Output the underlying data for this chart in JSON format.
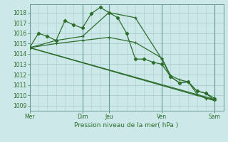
{
  "bg_color": "#cce8e8",
  "grid_color": "#aacccc",
  "line_color": "#2d6e2d",
  "xlabel": "Pression niveau de la mer( hPa )",
  "ylim": [
    1008.5,
    1018.8
  ],
  "yticks": [
    1009,
    1010,
    1011,
    1012,
    1013,
    1014,
    1015,
    1016,
    1017,
    1018
  ],
  "xtick_labels": [
    "Mer",
    "Dim",
    "Jeu",
    "Ven",
    "Sam"
  ],
  "xtick_positions": [
    0,
    6,
    9,
    15,
    21
  ],
  "vlines_major": [
    0,
    6,
    9,
    15,
    21
  ],
  "xlim": [
    0,
    22
  ],
  "series1_x": [
    0,
    1,
    2,
    3,
    4,
    5,
    6,
    7,
    8,
    9,
    10,
    11,
    12,
    13,
    14,
    15,
    16,
    17,
    18,
    19,
    20,
    21
  ],
  "series1_y": [
    1014.6,
    1016.0,
    1015.7,
    1015.3,
    1017.2,
    1016.8,
    1016.5,
    1017.9,
    1018.5,
    1018.0,
    1017.5,
    1016.0,
    1013.5,
    1013.5,
    1013.2,
    1013.0,
    1011.8,
    1011.2,
    1011.3,
    1010.4,
    1010.2,
    1009.7
  ],
  "series2_x": [
    0,
    3,
    6,
    9,
    12,
    15,
    16,
    17,
    18,
    19,
    20,
    21
  ],
  "series2_y": [
    1014.6,
    1015.3,
    1015.7,
    1018.0,
    1017.5,
    1013.5,
    1011.8,
    1011.2,
    1011.3,
    1010.4,
    1010.2,
    1009.5
  ],
  "series3_x": [
    0,
    21
  ],
  "series3_y": [
    1014.6,
    1009.5
  ],
  "series4_x": [
    0,
    3,
    6,
    9,
    12,
    15,
    16,
    17,
    18,
    19,
    20,
    21
  ],
  "series4_y": [
    1014.6,
    1015.0,
    1015.3,
    1015.6,
    1015.1,
    1013.6,
    1011.9,
    1011.5,
    1011.3,
    1010.1,
    1009.7,
    1009.5
  ],
  "series5_x": [
    0,
    21
  ],
  "series5_y": [
    1014.6,
    1009.6
  ]
}
